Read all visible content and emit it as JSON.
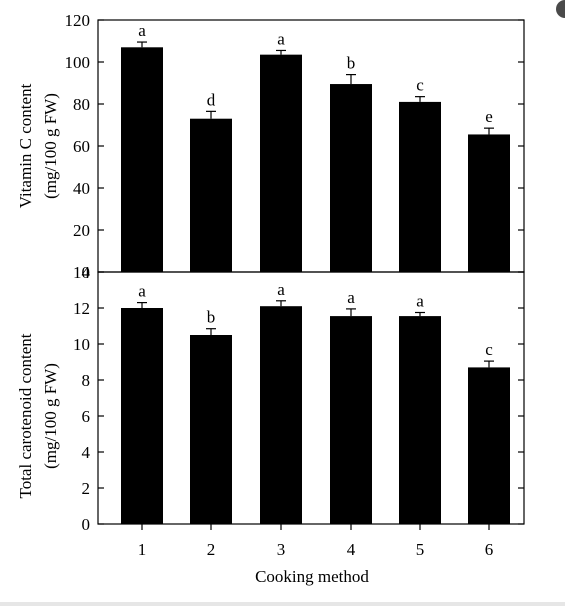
{
  "chart_data": [
    {
      "type": "bar",
      "ylabel": [
        "Vitamin C content",
        "(mg/100 g FW)"
      ],
      "xlabel": "",
      "ylim": [
        0,
        120
      ],
      "yticks": [
        0,
        20,
        40,
        60,
        80,
        100,
        120
      ],
      "categories": [
        "1",
        "2",
        "3",
        "4",
        "5",
        "6"
      ],
      "values": [
        107,
        73,
        103.5,
        89.5,
        81,
        65.5
      ],
      "errors": [
        2.5,
        3.5,
        2.0,
        4.5,
        2.5,
        3.0
      ],
      "labels": [
        "a",
        "d",
        "a",
        "b",
        "c",
        "e"
      ]
    },
    {
      "type": "bar",
      "ylabel": [
        "Total carotenoid content",
        "(mg/100 g FW)"
      ],
      "xlabel": "Cooking method",
      "ylim": [
        0,
        14
      ],
      "yticks": [
        0,
        2,
        4,
        6,
        8,
        10,
        12,
        14
      ],
      "categories": [
        "1",
        "2",
        "3",
        "4",
        "5",
        "6"
      ],
      "values": [
        12.0,
        10.5,
        12.1,
        11.55,
        11.55,
        8.7
      ],
      "errors": [
        0.3,
        0.35,
        0.3,
        0.4,
        0.2,
        0.35
      ],
      "labels": [
        "a",
        "b",
        "a",
        "a",
        "a",
        "c"
      ]
    }
  ],
  "colors": {
    "bar": "#000000",
    "axis": "#000000",
    "background": "#ffffff"
  }
}
